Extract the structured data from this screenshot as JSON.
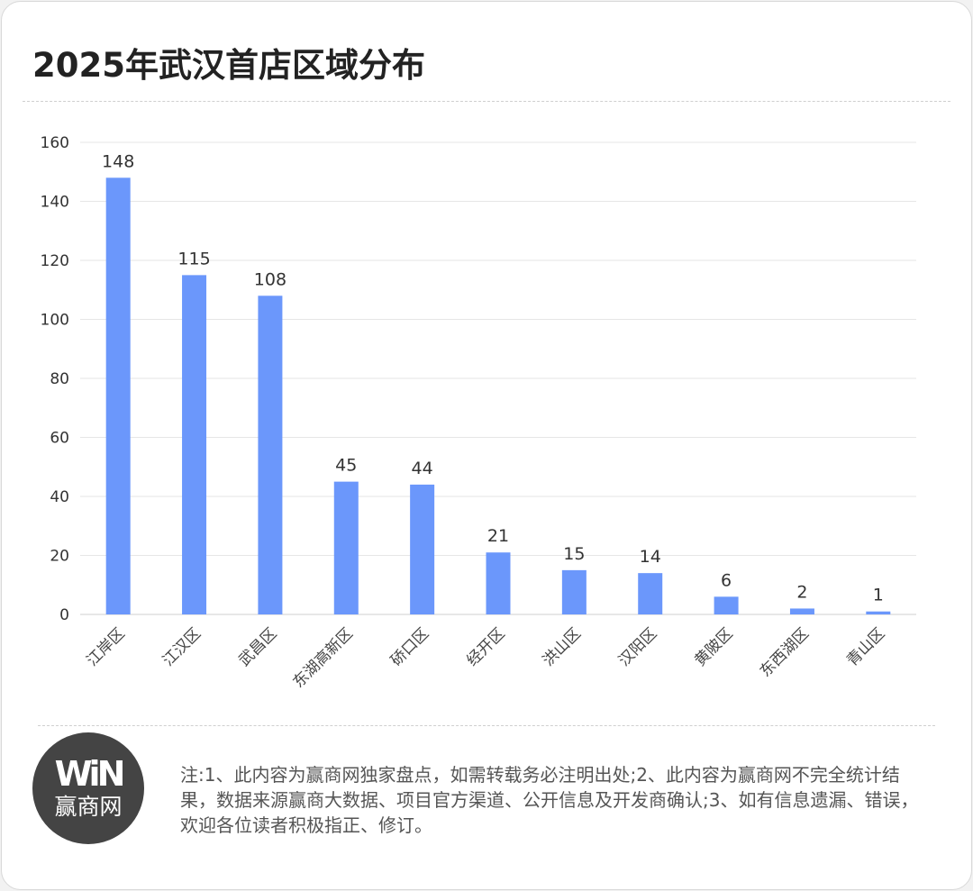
{
  "title": "2025年武汉首店区域分布",
  "chart_data": {
    "type": "bar",
    "title": "2025年武汉首店区域分布",
    "categories": [
      "江岸区",
      "江汉区",
      "武昌区",
      "东湖高新区",
      "硚口区",
      "经开区",
      "洪山区",
      "汉阳区",
      "黄陂区",
      "东西湖区",
      "青山区"
    ],
    "values": [
      148,
      115,
      108,
      45,
      44,
      21,
      15,
      14,
      6,
      2,
      1
    ],
    "ylim": [
      0,
      160
    ],
    "yticks": [
      0,
      20,
      40,
      60,
      80,
      100,
      120,
      140,
      160
    ],
    "grid": true,
    "bar_color": "#6b97fb",
    "data_labels": true
  },
  "footer": {
    "logo_mark": "WiN",
    "logo_name": "赢商网",
    "note": "注:1、此内容为赢商网独家盘点，如需转载务必注明出处;2、此内容为赢商网不完全统计结果，数据来源赢商大数据、项目官方渠道、公开信息及开发商确认;3、如有信息遗漏、错误，欢迎各位读者积极指正、修订。"
  }
}
